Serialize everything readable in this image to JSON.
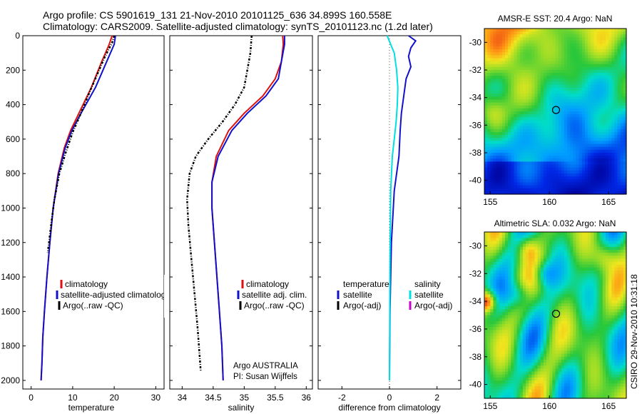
{
  "title_line1": "Argo profile: CS 5901619_131 21-Nov-2010 20101125_636 34.899S 160.558E",
  "title_line2": "Climatology: CARS2009. Satellite-adjusted climatology: synTS_20101123.nc (1.2d later)",
  "credit": "CSIRO 29-Nov-2010 10:31:18",
  "colors": {
    "climatology": "#dd1111",
    "satellite": "#1111cc",
    "argo": "#000000",
    "cyan": "#00e0e0",
    "magenta": "#cc00cc"
  },
  "chart_data": [
    {
      "type": "line",
      "xlabel": "temperature",
      "xlim": [
        -2,
        32
      ],
      "ylim": [
        2050,
        0
      ],
      "xticks": [
        0,
        10,
        20,
        30
      ],
      "yticks": [
        0,
        200,
        400,
        600,
        800,
        1000,
        1200,
        1400,
        1600,
        1800,
        2000
      ],
      "legend": [
        "climatology",
        "satellite-adjusted climatology",
        "Argo(..raw -QC)"
      ],
      "series": [
        {
          "name": "climatology",
          "color": "#dd1111",
          "x": [
            19.5,
            18.8,
            17.0,
            14.5,
            11.5,
            9.5,
            8.0,
            6.5,
            5.3,
            4.5,
            3.8,
            3.2,
            2.8,
            2.6,
            2.4
          ],
          "y": [
            0,
            50,
            150,
            300,
            450,
            550,
            650,
            800,
            1000,
            1200,
            1400,
            1600,
            1750,
            1900,
            2000
          ]
        },
        {
          "name": "satellite-adjusted climatology",
          "color": "#1111cc",
          "x": [
            20.3,
            20.0,
            18.2,
            15.5,
            12.0,
            9.8,
            8.2,
            6.6,
            5.3,
            4.5,
            3.8,
            3.2,
            2.8,
            2.6,
            2.4
          ],
          "y": [
            0,
            50,
            150,
            300,
            450,
            550,
            650,
            800,
            1000,
            1200,
            1400,
            1600,
            1750,
            1900,
            2000
          ]
        },
        {
          "name": "Argo(..raw -QC)",
          "color": "#000000",
          "x": [
            20.0,
            19.5,
            17.8,
            16.0,
            14.2,
            12.0,
            10.0,
            8.3,
            6.8,
            5.6,
            4.8,
            4.0
          ],
          "y": [
            0,
            40,
            120,
            220,
            320,
            450,
            560,
            680,
            800,
            950,
            1100,
            1260
          ]
        }
      ]
    },
    {
      "type": "line",
      "xlabel": "salinity",
      "xlim": [
        33.8,
        36.1
      ],
      "ylim": [
        2050,
        0
      ],
      "xticks": [
        34,
        34.5,
        35,
        35.5,
        36
      ],
      "legend": [
        "climatology",
        "satellite adj. clim.",
        "Argo(..raw -QC)"
      ],
      "annotation": [
        "Argo AUSTRALIA",
        "PI: Susan Wijffels"
      ],
      "series": [
        {
          "name": "climatology",
          "color": "#dd1111",
          "x": [
            35.62,
            35.63,
            35.6,
            35.5,
            35.3,
            35.0,
            34.75,
            34.55,
            34.48,
            34.48,
            34.52,
            34.56,
            34.6,
            34.64,
            34.66
          ],
          "y": [
            0,
            50,
            150,
            250,
            350,
            450,
            550,
            700,
            850,
            1000,
            1200,
            1400,
            1600,
            1800,
            2000
          ]
        },
        {
          "name": "satellite adj. clim.",
          "color": "#1111cc",
          "x": [
            35.65,
            35.65,
            35.6,
            35.55,
            35.35,
            35.05,
            34.8,
            34.58,
            34.48,
            34.48,
            34.52,
            34.56,
            34.6,
            34.64,
            34.66
          ],
          "y": [
            0,
            50,
            150,
            250,
            350,
            450,
            550,
            700,
            850,
            1000,
            1200,
            1400,
            1600,
            1800,
            2000
          ]
        },
        {
          "name": "Argo(..raw -QC)",
          "color": "#000000",
          "x": [
            35.12,
            35.1,
            35.05,
            35.0,
            34.85,
            34.65,
            34.42,
            34.22,
            34.12,
            34.08,
            34.1,
            34.15,
            34.2,
            34.25,
            34.28,
            34.3
          ],
          "y": [
            0,
            100,
            200,
            300,
            400,
            500,
            600,
            700,
            800,
            950,
            1100,
            1300,
            1500,
            1700,
            1850,
            1950
          ]
        }
      ]
    },
    {
      "type": "line",
      "xlabel": "difference from climatology",
      "xlim": [
        -3,
        3
      ],
      "ylim": [
        2050,
        0
      ],
      "xticks": [
        -2,
        0,
        2
      ],
      "legend_temperature": [
        "temperature",
        "satellite",
        "Argo(-adj)"
      ],
      "legend_salinity": [
        "salinity",
        "satellite",
        "Argo(-adj)"
      ],
      "series": [
        {
          "name": "temperature satellite",
          "color": "#1111cc",
          "x": [
            0.8,
            1.1,
            0.9,
            0.8,
            0.9,
            0.7,
            0.6,
            0.5,
            0.45,
            0.4,
            0.2,
            0.08,
            0.02,
            0.0
          ],
          "y": [
            0,
            30,
            70,
            120,
            180,
            250,
            350,
            450,
            550,
            700,
            900,
            1200,
            1600,
            2000
          ]
        },
        {
          "name": "salinity satellite",
          "color": "#00e0e0",
          "x": [
            -0.1,
            0.05,
            0.2,
            0.3,
            0.35,
            0.33,
            0.28,
            0.2,
            0.12,
            0.05,
            0.02,
            0.0
          ],
          "y": [
            0,
            50,
            100,
            200,
            300,
            400,
            500,
            600,
            700,
            900,
            1300,
            2000
          ]
        }
      ]
    },
    {
      "type": "heatmap",
      "title": "AMSR-E SST: 20.4 Argo: NaN",
      "xlim": [
        154.5,
        166.5
      ],
      "ylim": [
        -41,
        -29
      ],
      "xticks": [
        155,
        160,
        165
      ],
      "yticks": [
        -30,
        -32,
        -34,
        -36,
        -38,
        -40
      ],
      "marker": [
        160.56,
        -34.9
      ]
    },
    {
      "type": "heatmap",
      "title": "Altimetric SLA: 0.032 Argo: NaN",
      "xlim": [
        154.5,
        166.5
      ],
      "ylim": [
        -41,
        -29
      ],
      "xticks": [
        155,
        160,
        165
      ],
      "yticks": [
        -30,
        -32,
        -34,
        -36,
        -38,
        -40
      ],
      "marker": [
        160.56,
        -34.9
      ]
    }
  ]
}
